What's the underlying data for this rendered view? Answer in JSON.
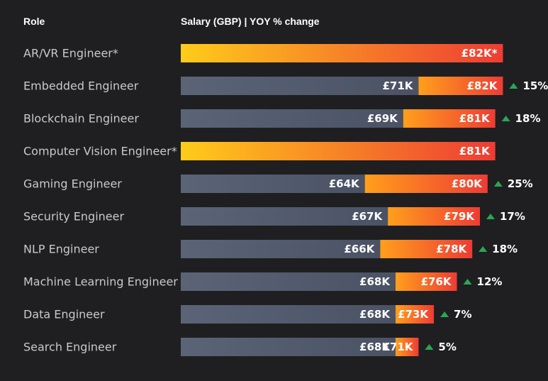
{
  "header": {
    "role_label": "Role",
    "salary_label": "Salary (GBP) | YOY % change"
  },
  "chart_data": {
    "type": "bar",
    "categories": [
      "AR/VR Engineer*",
      "Embedded Engineer",
      "Blockchain Engineer",
      "Computer Vision Engineer*",
      "Gaming Engineer",
      "Security Engineer",
      "NLP Engineer",
      "Machine Learning Engineer",
      "Data Engineer",
      "Search Engineer"
    ],
    "series": [
      {
        "name": "",
        "values": [
          null,
          71,
          69,
          null,
          64,
          67,
          66,
          68,
          68,
          68
        ],
        "labels": [
          "",
          "£71K",
          "£69K",
          "",
          "£64K",
          "£67K",
          "£66K",
          "£68K",
          "£68K",
          "£68K"
        ]
      },
      {
        "name": "",
        "values": [
          82,
          82,
          81,
          81,
          80,
          79,
          78,
          76,
          73,
          71
        ],
        "labels": [
          "£82K*",
          "£82K",
          "£81K",
          "£81K",
          "£80K",
          "£79K",
          "£78K",
          "£76K",
          "£73K",
          "£71K"
        ]
      }
    ],
    "yoy_change": [
      "",
      "15%",
      "18%",
      "",
      "25%",
      "17%",
      "18%",
      "12%",
      "7%",
      "5%"
    ],
    "unit": "£K",
    "x_start": 40,
    "xlim": [
      40,
      82
    ],
    "grid": false,
    "legend": "none",
    "colors": {
      "background": "#1f1f21",
      "prior_bar_start": "#5b6477",
      "prior_bar_end": "#4a5264",
      "current_bar_start": "#ff9f1c",
      "current_bar_end": "#ee3c34",
      "new_role_bar_start": "#ffcc1a",
      "new_role_bar_end": "#ee3c34",
      "increase_arrow": "#2aa653",
      "role_text": "#c9c9cc",
      "value_text": "#ffffff"
    }
  }
}
